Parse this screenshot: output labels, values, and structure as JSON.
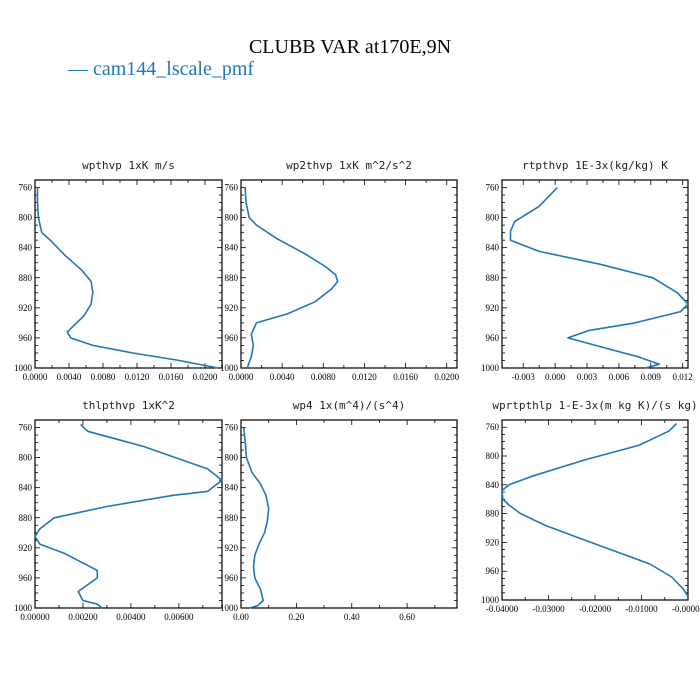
{
  "title": "CLUBB VAR at170E,9N",
  "legend": {
    "series_name": "cam144_lscale_pmf",
    "marker": "—"
  },
  "colors": {
    "series": "#1f77b4",
    "axis": "#000000"
  },
  "chart_data": [
    {
      "type": "line",
      "title": "wpthvp  1xK m/s",
      "y_inverted": true,
      "ylim": [
        1000,
        750
      ],
      "xlim": [
        0,
        0.022
      ],
      "yticks": [
        760,
        800,
        840,
        880,
        920,
        960,
        1000
      ],
      "xticks": [
        0,
        0.004,
        0.008,
        0.012,
        0.016,
        0.02
      ],
      "xtick_labels": [
        "0.0000",
        "0.0040",
        "0.0080",
        "0.0120",
        "0.0160",
        "0.0200"
      ],
      "series": [
        {
          "x": [
            0.0003,
            0.0003,
            0.0004,
            0.0008,
            0.0018,
            0.0035,
            0.0055,
            0.0066,
            0.0068,
            0.0066,
            0.0058,
            0.0038,
            0.0042,
            0.0068,
            0.0115,
            0.017,
            0.0215
          ],
          "y": [
            760,
            780,
            800,
            820,
            830,
            850,
            870,
            885,
            900,
            915,
            930,
            952,
            960,
            970,
            980,
            990,
            1000
          ]
        }
      ]
    },
    {
      "type": "line",
      "title": "wp2thvp  1xK m^2/s^2",
      "y_inverted": true,
      "ylim": [
        1000,
        750
      ],
      "xlim": [
        0,
        0.021
      ],
      "yticks": [
        760,
        800,
        840,
        880,
        920,
        960,
        1000
      ],
      "xticks": [
        0,
        0.004,
        0.008,
        0.012,
        0.016,
        0.02
      ],
      "xtick_labels": [
        "0.0000",
        "0.0040",
        "0.0080",
        "0.0120",
        "0.0160",
        "0.0200"
      ],
      "series": [
        {
          "x": [
            0.0004,
            0.0005,
            0.0008,
            0.0015,
            0.0035,
            0.0062,
            0.0082,
            0.0092,
            0.0094,
            0.0088,
            0.0072,
            0.0045,
            0.0015,
            0.001,
            0.0012,
            0.001,
            0.0006
          ],
          "y": [
            760,
            780,
            800,
            810,
            828,
            848,
            865,
            876,
            885,
            895,
            912,
            928,
            940,
            955,
            970,
            985,
            1000
          ]
        }
      ]
    },
    {
      "type": "line",
      "title": "rtpthvp  1E-3x(kg/kg) K",
      "y_inverted": true,
      "ylim": [
        1000,
        750
      ],
      "xlim": [
        -0.005,
        0.0125
      ],
      "yticks": [
        760,
        800,
        840,
        880,
        920,
        960,
        1000
      ],
      "xticks": [
        -0.003,
        0,
        0.003,
        0.006,
        0.009,
        0.012
      ],
      "xtick_labels": [
        "-0.003",
        "0.000",
        "0.003",
        "0.006",
        "0.009",
        "0.012"
      ],
      "series": [
        {
          "x": [
            0.0002,
            -0.0015,
            -0.0038,
            -0.0042,
            -0.0042,
            -0.0015,
            0.0042,
            0.0092,
            0.0115,
            0.0125,
            0.0118,
            0.0075,
            0.0032,
            0.0012,
            0.0038,
            0.0078,
            0.0098,
            0.0085
          ],
          "y": [
            760,
            785,
            805,
            818,
            830,
            845,
            862,
            880,
            900,
            915,
            925,
            940,
            950,
            960,
            970,
            985,
            995,
            1000
          ]
        }
      ]
    },
    {
      "type": "line",
      "title": "thlpthvp  1xK^2",
      "y_inverted": true,
      "ylim": [
        1000,
        750
      ],
      "xlim": [
        0,
        0.0078
      ],
      "yticks": [
        760,
        800,
        840,
        880,
        920,
        960,
        1000
      ],
      "xticks": [
        0,
        0.002,
        0.004,
        0.006
      ],
      "xtick_labels": [
        "0.00000",
        "0.00200",
        "0.00400",
        "0.00600"
      ],
      "series": [
        {
          "x": [
            0.0019,
            0.0022,
            0.0045,
            0.0072,
            0.0078,
            0.0072,
            0.0058,
            0.003,
            0.0008,
            0.0002,
            0.0,
            0.0002,
            0.0012,
            0.0026,
            0.0026,
            0.0018,
            0.002,
            0.0026,
            0.0028
          ],
          "y": [
            756,
            765,
            785,
            815,
            830,
            845,
            850,
            865,
            880,
            895,
            905,
            915,
            927,
            950,
            960,
            978,
            990,
            995,
            1000
          ]
        }
      ]
    },
    {
      "type": "line",
      "title": "wp4  1x(m^4)/(s^4)",
      "y_inverted": true,
      "ylim": [
        1000,
        750
      ],
      "xlim": [
        0,
        0.78
      ],
      "yticks": [
        760,
        800,
        840,
        880,
        920,
        960,
        1000
      ],
      "xticks": [
        0,
        0.2,
        0.4,
        0.6
      ],
      "xtick_labels": [
        "0.00",
        "0.20",
        "0.40",
        "0.60"
      ],
      "series": [
        {
          "x": [
            0.01,
            0.015,
            0.02,
            0.04,
            0.07,
            0.09,
            0.1,
            0.095,
            0.085,
            0.065,
            0.05,
            0.045,
            0.05,
            0.07,
            0.08,
            0.06,
            0.03
          ],
          "y": [
            760,
            780,
            800,
            820,
            835,
            850,
            868,
            885,
            900,
            915,
            930,
            945,
            960,
            975,
            990,
            997,
            1000
          ]
        }
      ]
    },
    {
      "type": "line",
      "title": "wprtpthlp  1-E-3x(m kg K)/(s kg)",
      "y_inverted": true,
      "ylim": [
        1000,
        750
      ],
      "xlim": [
        -0.04,
        0.0
      ],
      "yticks": [
        760,
        800,
        840,
        880,
        920,
        960,
        1000
      ],
      "xticks": [
        -0.04,
        -0.03,
        -0.02,
        -0.01,
        0.0
      ],
      "xtick_labels": [
        "-0.04000",
        "-0.03000",
        "-0.02000",
        "-0.01000",
        "-0.00000"
      ],
      "series": [
        {
          "x": [
            -0.0025,
            -0.004,
            -0.0105,
            -0.022,
            -0.0335,
            -0.0385,
            -0.04,
            -0.0398,
            -0.0385,
            -0.036,
            -0.0305,
            -0.023,
            -0.0158,
            -0.0082,
            -0.0035,
            -0.001,
            0.0
          ],
          "y": [
            755,
            765,
            785,
            805,
            828,
            840,
            848,
            860,
            868,
            880,
            897,
            915,
            932,
            950,
            968,
            985,
            995
          ]
        }
      ]
    }
  ]
}
